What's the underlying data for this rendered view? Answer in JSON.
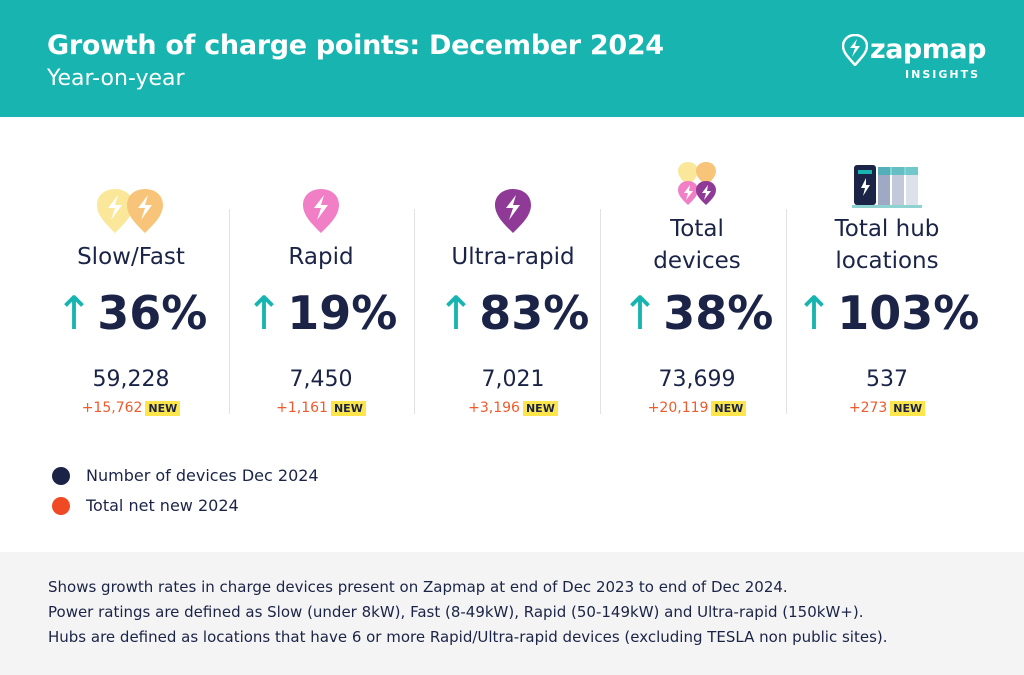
{
  "header": {
    "title": "Growth of charge points: December 2024",
    "subtitle": "Year-on-year",
    "brand": "zapmap",
    "brand_sub": "INSIGHTS"
  },
  "colors": {
    "teal": "#17b4b0",
    "navy": "#1b2447",
    "orange": "#ef5a2d",
    "badge": "#fde64b"
  },
  "stats": [
    {
      "label": "Slow/Fast",
      "arrow": "↑",
      "pct": "36%",
      "count": "59,228",
      "net_new": "+15,762",
      "badge": "NEW",
      "icon": "slow-fast-charger-icon"
    },
    {
      "label": "Rapid",
      "arrow": "↑",
      "pct": "19%",
      "count": "7,450",
      "net_new": "+1,161",
      "badge": "NEW",
      "icon": "rapid-charger-icon"
    },
    {
      "label": "Ultra-rapid",
      "arrow": "↑",
      "pct": "83%",
      "count": "7,021",
      "net_new": "+3,196",
      "badge": "NEW",
      "icon": "ultra-rapid-charger-icon"
    },
    {
      "label_line1": "Total",
      "label_line2": "devices",
      "arrow": "↑",
      "pct": "38%",
      "count": "73,699",
      "net_new": "+20,119",
      "badge": "NEW",
      "icon": "all-chargers-icon"
    },
    {
      "label_line1": "Total hub",
      "label_line2": "locations",
      "arrow": "↑",
      "pct": "103%",
      "count": "537",
      "net_new": "+273",
      "badge": "NEW",
      "icon": "charging-hub-icon"
    }
  ],
  "legend": [
    {
      "label": "Number of devices Dec 2024",
      "color": "#1b2447"
    },
    {
      "label": "Total net new 2024",
      "color": "#ef4a23"
    }
  ],
  "footer": {
    "line1": "Shows growth rates in charge devices present on Zapmap at end of Dec 2023 to end of Dec 2024.",
    "line2": "Power ratings are defined as Slow (under 8kW), Fast (8-49kW), Rapid (50-149kW) and Ultra-rapid (150kW+).",
    "line3": "Hubs are defined as locations that have 6 or more Rapid/Ultra-rapid devices (excluding TESLA non public sites)."
  }
}
